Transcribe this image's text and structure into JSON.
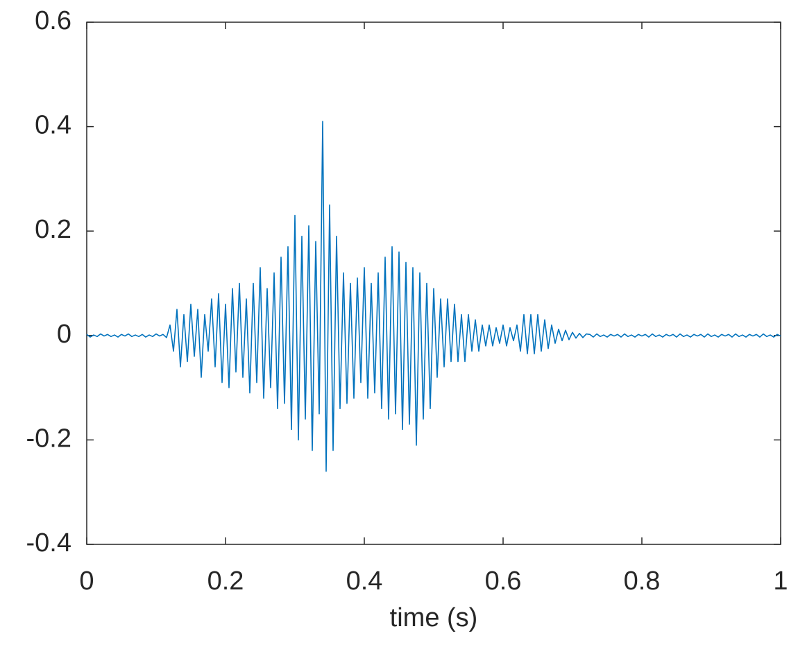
{
  "chart_data": {
    "type": "line",
    "xlabel": "time (s)",
    "x": [
      0,
      0.005,
      0.01,
      0.015,
      0.02,
      0.025,
      0.03,
      0.035,
      0.04,
      0.045,
      0.05,
      0.055,
      0.06,
      0.065,
      0.07,
      0.075,
      0.08,
      0.085,
      0.09,
      0.095,
      0.1,
      0.105,
      0.11,
      0.115,
      0.12,
      0.125,
      0.13,
      0.135,
      0.14,
      0.145,
      0.15,
      0.155,
      0.16,
      0.165,
      0.17,
      0.175,
      0.18,
      0.185,
      0.19,
      0.195,
      0.2,
      0.205,
      0.21,
      0.215,
      0.22,
      0.225,
      0.23,
      0.235,
      0.24,
      0.245,
      0.25,
      0.255,
      0.26,
      0.265,
      0.27,
      0.275,
      0.28,
      0.285,
      0.29,
      0.295,
      0.3,
      0.305,
      0.31,
      0.315,
      0.32,
      0.325,
      0.33,
      0.335,
      0.34,
      0.345,
      0.35,
      0.355,
      0.36,
      0.365,
      0.37,
      0.375,
      0.38,
      0.385,
      0.39,
      0.395,
      0.4,
      0.405,
      0.41,
      0.415,
      0.42,
      0.425,
      0.43,
      0.435,
      0.44,
      0.445,
      0.45,
      0.455,
      0.46,
      0.465,
      0.47,
      0.475,
      0.48,
      0.485,
      0.49,
      0.495,
      0.5,
      0.505,
      0.51,
      0.515,
      0.52,
      0.525,
      0.53,
      0.535,
      0.54,
      0.545,
      0.55,
      0.555,
      0.56,
      0.565,
      0.57,
      0.575,
      0.58,
      0.585,
      0.59,
      0.595,
      0.6,
      0.605,
      0.61,
      0.615,
      0.62,
      0.625,
      0.63,
      0.635,
      0.64,
      0.645,
      0.65,
      0.655,
      0.66,
      0.665,
      0.67,
      0.675,
      0.68,
      0.685,
      0.69,
      0.695,
      0.7,
      0.705,
      0.71,
      0.715,
      0.72,
      0.725,
      0.73,
      0.735,
      0.74,
      0.745,
      0.75,
      0.755,
      0.76,
      0.765,
      0.77,
      0.775,
      0.78,
      0.785,
      0.79,
      0.795,
      0.8,
      0.805,
      0.81,
      0.815,
      0.82,
      0.825,
      0.83,
      0.835,
      0.84,
      0.845,
      0.85,
      0.855,
      0.86,
      0.865,
      0.87,
      0.875,
      0.88,
      0.885,
      0.89,
      0.895,
      0.9,
      0.905,
      0.91,
      0.915,
      0.92,
      0.925,
      0.93,
      0.935,
      0.94,
      0.945,
      0.95,
      0.955,
      0.96,
      0.965,
      0.97,
      0.975,
      0.98,
      0.985,
      0.99,
      0.995,
      1
    ],
    "series": [
      {
        "color": "#0072bd",
        "values": [
          0.002,
          -0.003,
          0.001,
          -0.002,
          0.003,
          -0.001,
          0.002,
          -0.002,
          0.001,
          -0.003,
          0.002,
          -0.001,
          0.003,
          -0.002,
          0.001,
          -0.002,
          0.002,
          -0.003,
          0.001,
          -0.002,
          0.003,
          -0.001,
          0.002,
          -0.004,
          0.02,
          -0.03,
          0.05,
          -0.06,
          0.04,
          -0.05,
          0.06,
          -0.04,
          0.05,
          -0.08,
          0.04,
          -0.03,
          0.07,
          -0.06,
          0.08,
          -0.09,
          0.06,
          -0.1,
          0.09,
          -0.07,
          0.1,
          -0.08,
          0.07,
          -0.11,
          0.1,
          -0.09,
          0.13,
          -0.12,
          0.09,
          -0.1,
          0.12,
          -0.14,
          0.15,
          -0.13,
          0.17,
          -0.18,
          0.23,
          -0.2,
          0.19,
          -0.16,
          0.21,
          -0.22,
          0.18,
          -0.15,
          0.41,
          -0.26,
          0.25,
          -0.22,
          0.19,
          -0.14,
          0.12,
          -0.13,
          0.1,
          -0.12,
          0.11,
          -0.09,
          0.13,
          -0.12,
          0.1,
          -0.11,
          0.12,
          -0.14,
          0.15,
          -0.16,
          0.17,
          -0.15,
          0.16,
          -0.18,
          0.14,
          -0.17,
          0.13,
          -0.21,
          0.12,
          -0.16,
          0.1,
          -0.14,
          0.09,
          -0.08,
          0.07,
          -0.06,
          0.07,
          -0.05,
          0.06,
          -0.05,
          0.04,
          -0.05,
          0.04,
          -0.03,
          0.03,
          -0.03,
          0.02,
          -0.02,
          0.02,
          -0.02,
          0.015,
          -0.015,
          0.02,
          -0.02,
          0.015,
          -0.01,
          0.02,
          -0.03,
          0.04,
          -0.035,
          0.04,
          -0.035,
          0.04,
          -0.03,
          0.03,
          -0.025,
          0.02,
          -0.015,
          0.012,
          -0.01,
          0.01,
          -0.008,
          0.006,
          -0.005,
          0.004,
          -0.004,
          0.003,
          0.002,
          -0.003,
          0.003,
          -0.002,
          0.001,
          -0.003,
          0.002,
          -0.001,
          0.002,
          -0.003,
          0.003,
          -0.002,
          0.001,
          -0.003,
          0.002,
          -0.001,
          0.002,
          -0.003,
          0.003,
          -0.002,
          0.001,
          -0.003,
          0.002,
          -0.001,
          0.002,
          -0.003,
          0.003,
          -0.002,
          0.001,
          -0.003,
          0.002,
          -0.001,
          0.002,
          -0.003,
          0.003,
          -0.002,
          0.001,
          -0.003,
          0.002,
          -0.001,
          0.002,
          -0.003,
          0.003,
          -0.002,
          0.001,
          -0.003,
          0.002,
          -0.001,
          0.002,
          -0.003,
          0.003,
          -0.002,
          0.001,
          -0.003,
          0.002,
          -0.001
        ]
      }
    ],
    "xlim": [
      0,
      1
    ],
    "xticks": [
      0,
      0.2,
      0.4,
      0.6,
      0.8,
      1
    ],
    "ylim": [
      -0.4,
      0.6
    ],
    "yticks": [
      -0.4,
      -0.2,
      0,
      0.2,
      0.4,
      0.6
    ]
  }
}
